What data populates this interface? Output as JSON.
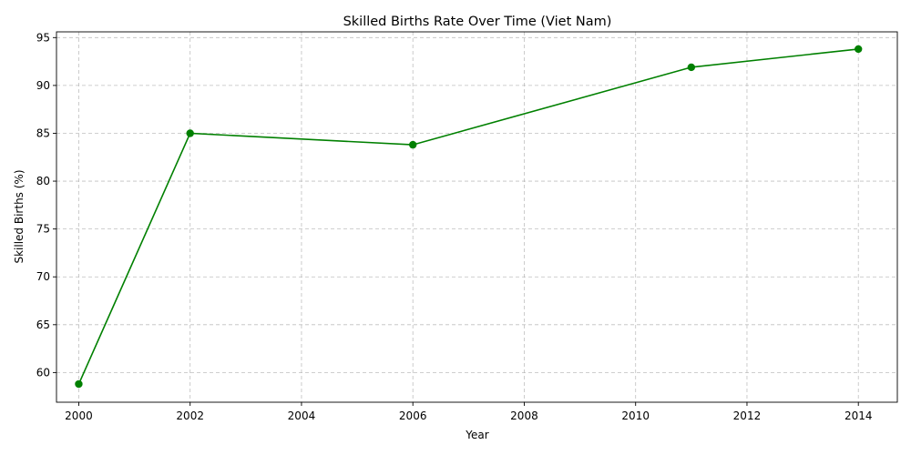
{
  "chart_data": {
    "type": "line",
    "title": "Skilled Births Rate Over Time (Viet Nam)",
    "xlabel": "Year",
    "ylabel": "Skilled Births (%)",
    "x": [
      2000,
      2002,
      2006,
      2011,
      2014
    ],
    "series": [
      {
        "values": [
          58.8,
          85.0,
          83.8,
          91.9,
          93.8
        ]
      }
    ],
    "xlim": [
      1999.6,
      2014.7
    ],
    "ylim": [
      56.9,
      95.6
    ],
    "xticks": [
      2000,
      2002,
      2004,
      2006,
      2008,
      2010,
      2012,
      2014
    ],
    "yticks": [
      60,
      65,
      70,
      75,
      80,
      85,
      90,
      95
    ],
    "grid": true,
    "color": "#008000",
    "marker": "circle"
  }
}
